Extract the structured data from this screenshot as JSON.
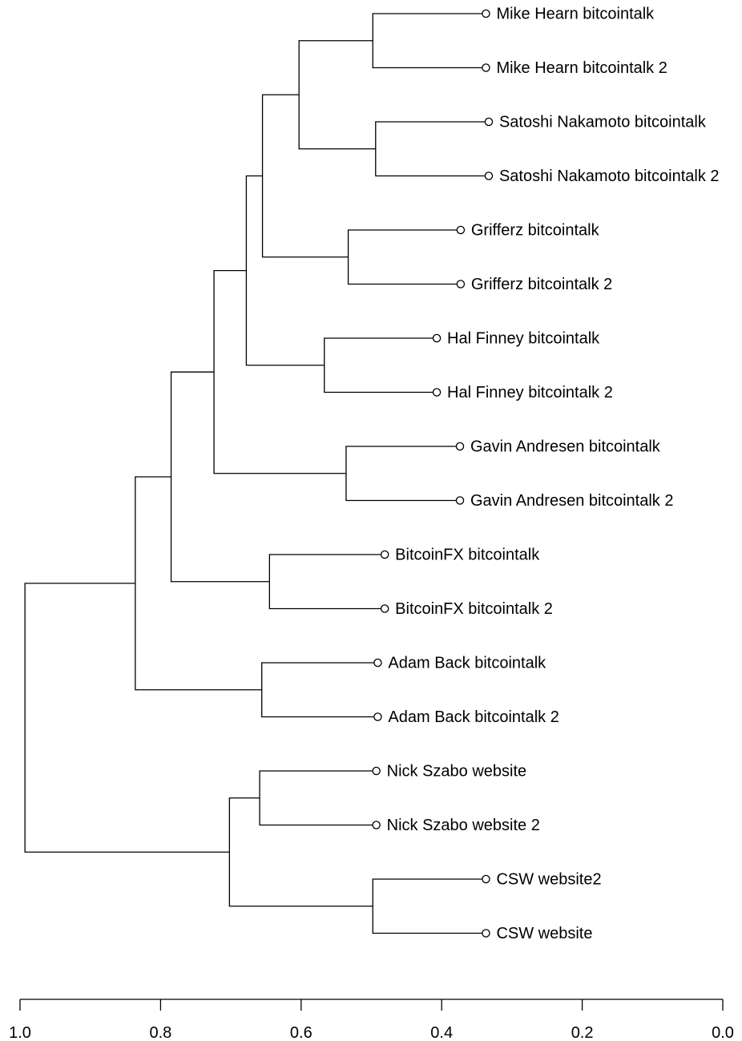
{
  "chart_data": {
    "type": "dendrogram",
    "orientation": "horizontal",
    "x_axis": {
      "ticks": [
        1.0,
        0.8,
        0.6,
        0.4,
        0.2,
        0.0
      ],
      "tick_labels": [
        "1.0",
        "0.8",
        "0.6",
        "0.4",
        "0.2",
        "0.0"
      ],
      "range": [
        1.0,
        0.0
      ]
    },
    "leaves": [
      {
        "label": "Mike Hearn bitcointalk",
        "x": 0.337
      },
      {
        "label": "Mike Hearn bitcointalk 2",
        "x": 0.337
      },
      {
        "label": "Satoshi Nakamoto bitcointalk",
        "x": 0.333
      },
      {
        "label": "Satoshi Nakamoto bitcointalk 2",
        "x": 0.333
      },
      {
        "label": "Grifferz bitcointalk",
        "x": 0.373
      },
      {
        "label": "Grifferz bitcointalk 2",
        "x": 0.373
      },
      {
        "label": "Hal Finney bitcointalk",
        "x": 0.407
      },
      {
        "label": "Hal Finney bitcointalk 2",
        "x": 0.407
      },
      {
        "label": "Gavin Andresen bitcointalk",
        "x": 0.374
      },
      {
        "label": "Gavin Andresen bitcointalk 2",
        "x": 0.374
      },
      {
        "label": "BitcoinFX bitcointalk",
        "x": 0.481
      },
      {
        "label": "BitcoinFX bitcointalk 2",
        "x": 0.481
      },
      {
        "label": "Adam Back bitcointalk",
        "x": 0.491
      },
      {
        "label": "Adam Back bitcointalk 2",
        "x": 0.491
      },
      {
        "label": "Nick Szabo website",
        "x": 0.493
      },
      {
        "label": "Nick Szabo website 2",
        "x": 0.493
      },
      {
        "label": "CSW website2",
        "x": 0.337
      },
      {
        "label": "CSW website",
        "x": 0.337
      }
    ],
    "merges": [
      {
        "left": "L0",
        "right": "L1",
        "height": 0.498
      },
      {
        "left": "L2",
        "right": "L3",
        "height": 0.494
      },
      {
        "left": "M0",
        "right": "M1",
        "height": 0.603
      },
      {
        "left": "L4",
        "right": "L5",
        "height": 0.533
      },
      {
        "left": "M2",
        "right": "M3",
        "height": 0.655
      },
      {
        "left": "L6",
        "right": "L7",
        "height": 0.567
      },
      {
        "left": "M4",
        "right": "M5",
        "height": 0.678
      },
      {
        "left": "L8",
        "right": "L9",
        "height": 0.536
      },
      {
        "left": "M6",
        "right": "M7",
        "height": 0.724
      },
      {
        "left": "L10",
        "right": "L11",
        "height": 0.645
      },
      {
        "left": "M8",
        "right": "M9",
        "height": 0.785
      },
      {
        "left": "L12",
        "right": "L13",
        "height": 0.656
      },
      {
        "left": "M10",
        "right": "M11",
        "height": 0.836
      },
      {
        "left": "L14",
        "right": "L15",
        "height": 0.659
      },
      {
        "left": "L16",
        "right": "L17",
        "height": 0.498
      },
      {
        "left": "M13",
        "right": "M14",
        "height": 0.702
      },
      {
        "left": "M12",
        "right": "M15",
        "height": 0.993
      }
    ]
  }
}
